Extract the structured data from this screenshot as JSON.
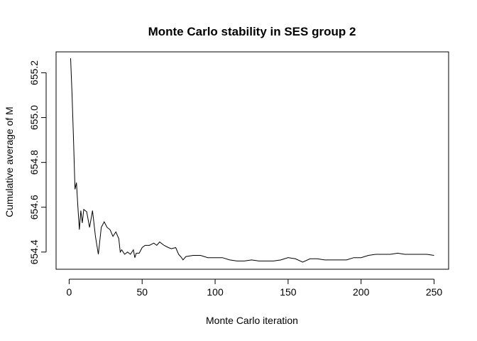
{
  "chart_data": {
    "type": "line",
    "title": "Monte Carlo stability in SES group 2",
    "xlabel": "Monte Carlo iteration",
    "ylabel": "Cumulative average of M",
    "xlim": [
      -8.96,
      259.96
    ],
    "ylim": [
      654.3233,
      655.2933
    ],
    "x_ticks": [
      0,
      50,
      100,
      150,
      200,
      250
    ],
    "y_ticks": [
      654.4,
      654.6,
      654.8,
      655.0,
      655.2
    ],
    "x_tick_labels": [
      "0",
      "50",
      "100",
      "150",
      "200",
      "250"
    ],
    "y_tick_labels": [
      "654.4",
      "654.6",
      "654.8",
      "655.0",
      "655.2"
    ],
    "grid": false,
    "legend": "none",
    "line_color": "#000000",
    "series": [
      {
        "x": [
          1,
          2,
          3,
          4,
          5,
          6,
          7,
          8,
          9,
          10,
          12,
          14,
          16,
          18,
          20,
          22,
          24,
          26,
          28,
          30,
          32,
          34,
          35,
          36,
          38,
          40,
          42,
          44,
          45,
          46,
          48,
          50,
          52,
          55,
          58,
          60,
          62,
          65,
          68,
          70,
          73,
          75,
          77,
          78,
          80,
          85,
          90,
          95,
          100,
          105,
          110,
          115,
          120,
          125,
          130,
          135,
          140,
          145,
          150,
          155,
          160,
          165,
          170,
          175,
          180,
          185,
          190,
          195,
          200,
          205,
          210,
          215,
          220,
          225,
          230,
          235,
          240,
          245,
          250
        ],
        "y": [
          655.265,
          655.1,
          654.9,
          654.68,
          654.71,
          654.6,
          654.5,
          654.585,
          654.53,
          654.59,
          654.58,
          654.51,
          654.585,
          654.47,
          654.39,
          654.51,
          654.535,
          654.51,
          654.5,
          654.47,
          654.49,
          654.46,
          654.4,
          654.41,
          654.39,
          654.4,
          654.39,
          654.41,
          654.375,
          654.395,
          654.395,
          654.42,
          654.43,
          654.43,
          654.44,
          654.43,
          654.445,
          654.43,
          654.42,
          654.415,
          654.42,
          654.39,
          654.375,
          654.365,
          654.38,
          654.385,
          654.385,
          654.375,
          654.375,
          654.375,
          654.365,
          654.36,
          654.36,
          654.365,
          654.36,
          654.36,
          654.36,
          654.365,
          654.375,
          654.37,
          654.355,
          654.37,
          654.37,
          654.365,
          654.365,
          654.365,
          654.365,
          654.375,
          654.375,
          654.385,
          654.39,
          654.39,
          654.39,
          654.395,
          654.39,
          654.39,
          654.39,
          654.39,
          654.385
        ]
      }
    ]
  }
}
